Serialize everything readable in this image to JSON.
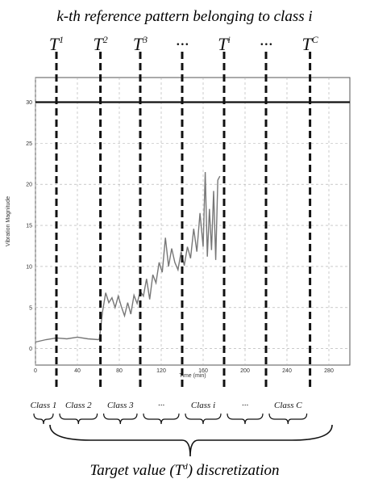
{
  "title": "k-th reference pattern belonging to class i",
  "target_labels": [
    {
      "base": "T",
      "sup": "1"
    },
    {
      "base": "T",
      "sup": "2"
    },
    {
      "base": "T",
      "sup": "3"
    },
    {
      "base": "···",
      "sup": ""
    },
    {
      "base": "T",
      "sup": "i"
    },
    {
      "base": "···",
      "sup": ""
    },
    {
      "base": "T",
      "sup": "C"
    }
  ],
  "class_labels": [
    "Class 1",
    "Class 2",
    "Class 3",
    "···",
    "Class i",
    "···",
    "Class C"
  ],
  "bottom_caption": {
    "before": "Target value (T",
    "sup": "d",
    "after": ") discretization"
  },
  "chart_data": {
    "type": "line",
    "xlabel": "Time (min)",
    "ylabel": "Vibration Magnitude",
    "xlim": [
      0,
      300
    ],
    "ylim": [
      -2,
      33
    ],
    "xticks": [
      0,
      40,
      80,
      120,
      160,
      200,
      240,
      280
    ],
    "yticks": [
      0,
      5,
      10,
      15,
      20,
      25,
      30
    ],
    "threshold": 30,
    "thresholds_x": [
      20,
      62,
      100,
      140,
      180,
      220,
      262
    ],
    "series": [
      {
        "x": [
          0,
          10,
          20,
          30,
          40,
          50,
          60,
          61,
          64,
          67,
          70,
          73,
          76,
          79,
          82,
          85,
          88,
          91,
          94,
          97,
          100,
          103,
          106,
          109,
          112,
          115,
          118,
          121,
          124,
          127,
          130,
          133,
          136,
          139,
          142,
          145,
          148,
          151,
          154,
          157,
          160,
          162,
          164,
          166,
          168,
          170,
          172,
          174,
          176
        ],
        "y": [
          0.8,
          1.1,
          1.3,
          1.2,
          1.4,
          1.2,
          1.1,
          1.2,
          4.5,
          6.8,
          5.6,
          6.2,
          5.0,
          6.4,
          5.1,
          4.0,
          5.6,
          4.2,
          6.5,
          5.5,
          7.0,
          6.4,
          8.5,
          6.0,
          9.0,
          8.0,
          10.5,
          9.3,
          13.5,
          10.0,
          12.2,
          10.5,
          9.6,
          11.8,
          10.1,
          12.4,
          11.0,
          14.6,
          11.8,
          16.5,
          12.4,
          21.5,
          11.2,
          17.0,
          12.0,
          19.2,
          10.8,
          20.5,
          21.0
        ]
      }
    ]
  }
}
